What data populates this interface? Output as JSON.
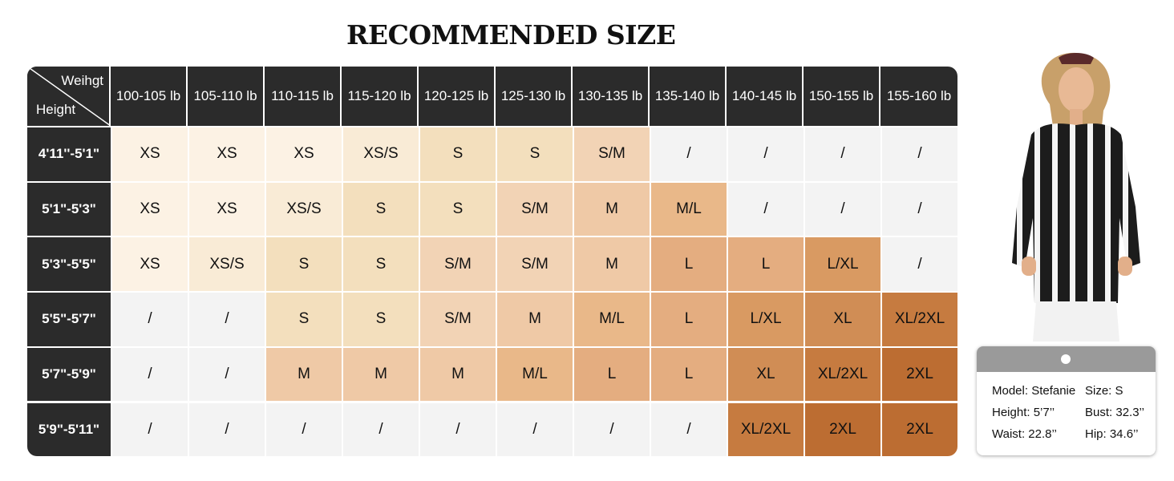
{
  "title": "RECOMMENDED SIZE",
  "corner": {
    "top_label": "Weihgt",
    "bottom_label": "Height"
  },
  "weights": [
    "100-105 lb",
    "105-110 lb",
    "110-115 lb",
    "115-120 lb",
    "120-125 lb",
    "125-130 lb",
    "130-135 lb",
    "135-140 lb",
    "140-145 lb",
    "150-155 lb",
    "155-160 lb"
  ],
  "rows": [
    {
      "height": "4'11''-5'1\"",
      "sizes": [
        "XS",
        "XS",
        "XS",
        "XS/S",
        "S",
        "S",
        "S/M",
        "/",
        "/",
        "/",
        "/"
      ]
    },
    {
      "height": "5'1\"-5'3\"",
      "sizes": [
        "XS",
        "XS",
        "XS/S",
        "S",
        "S",
        "S/M",
        "M",
        "M/L",
        "/",
        "/",
        "/"
      ]
    },
    {
      "height": "5'3\"-5'5\"",
      "sizes": [
        "XS",
        "XS/S",
        "S",
        "S",
        "S/M",
        "S/M",
        "M",
        "L",
        "L",
        "L/XL",
        "/"
      ]
    },
    {
      "height": "5'5\"-5'7\"",
      "sizes": [
        "/",
        "/",
        "S",
        "S",
        "S/M",
        "M",
        "M/L",
        "L",
        "L/XL",
        "XL",
        "XL/2XL"
      ]
    },
    {
      "height": "5'7\"-5'9\"",
      "sizes": [
        "/",
        "/",
        "M",
        "M",
        "M",
        "M/L",
        "L",
        "L",
        "XL",
        "XL/2XL",
        "2XL"
      ]
    },
    {
      "height": "5'9\"-5'11\"",
      "sizes": [
        "/",
        "/",
        "/",
        "/",
        "/",
        "/",
        "/",
        "/",
        "XL/2XL",
        "2XL",
        "2XL"
      ]
    }
  ],
  "size_colors": {
    "XS": "#fcf2e4",
    "XS/S": "#f9ebd6",
    "S": "#f3dfbd",
    "S/M": "#f2d3b5",
    "M": "#efc9a6",
    "M/L": "#e9b889",
    "L": "#e4ad80",
    "L/XL": "#d99a62",
    "XL": "#d08d55",
    "XL/2XL": "#c67b40",
    "2XL": "#bc6d32",
    "/": "#f3f3f3"
  },
  "model_card": {
    "model": "Model: Stefanie",
    "size": "Size: S",
    "height": "Height: 5’7’’",
    "bust": "Bust: 32.3’’",
    "waist": "Waist: 22.8’’",
    "hip": "Hip: 34.6’’"
  },
  "icons": {
    "photo": "model-photo-icon"
  }
}
